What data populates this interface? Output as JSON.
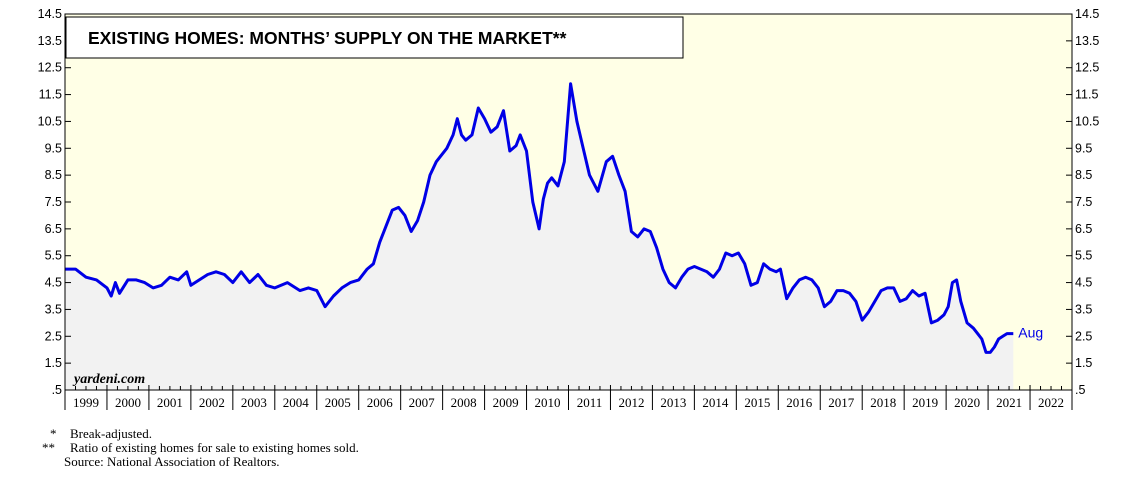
{
  "chart_data": {
    "type": "area",
    "title": "EXISTING HOMES: MONTHS’ SUPPLY ON THE MARKET**",
    "watermark": "yardeni.com",
    "end_label": "Aug",
    "xlabel": "",
    "ylabel": "",
    "ylim": [
      0.5,
      14.5
    ],
    "y_ticks": [
      ".5",
      "1.5",
      "2.5",
      "3.5",
      "4.5",
      "5.5",
      "6.5",
      "7.5",
      "8.5",
      "9.5",
      "10.5",
      "11.5",
      "12.5",
      "13.5",
      "14.5"
    ],
    "x_range": [
      1999.0,
      2023.0
    ],
    "x_tick_labels": [
      "1999",
      "2000",
      "2001",
      "2002",
      "2003",
      "2004",
      "2005",
      "2006",
      "2007",
      "2008",
      "2009",
      "2010",
      "2011",
      "2012",
      "2013",
      "2014",
      "2015",
      "2016",
      "2017",
      "2018",
      "2019",
      "2020",
      "2021",
      "2022"
    ],
    "grid": false,
    "colors": {
      "line": "#0000e6",
      "area": "#f2f2f2",
      "background": "#ffffe6"
    },
    "series": [
      {
        "x": [
          1999.0,
          1999.25,
          1999.5,
          1999.75,
          2000.0,
          2000.1,
          2000.2,
          2000.3,
          2000.5,
          2000.7,
          2000.9,
          2001.1,
          2001.3,
          2001.5,
          2001.7,
          2001.9,
          2002.0,
          2002.2,
          2002.4,
          2002.6,
          2002.8,
          2003.0,
          2003.2,
          2003.4,
          2003.6,
          2003.8,
          2004.0,
          2004.3,
          2004.6,
          2004.8,
          2005.0,
          2005.2,
          2005.4,
          2005.6,
          2005.8,
          2006.0,
          2006.2,
          2006.35,
          2006.5,
          2006.65,
          2006.8,
          2006.95,
          2007.1,
          2007.25,
          2007.4,
          2007.55,
          2007.7,
          2007.85,
          2007.95,
          2008.1,
          2008.25,
          2008.35,
          2008.45,
          2008.55,
          2008.7,
          2008.85,
          2009.0,
          2009.15,
          2009.3,
          2009.45,
          2009.6,
          2009.75,
          2009.85,
          2010.0,
          2010.15,
          2010.3,
          2010.4,
          2010.5,
          2010.6,
          2010.75,
          2010.9,
          2011.05,
          2011.2,
          2011.35,
          2011.5,
          2011.7,
          2011.9,
          2012.05,
          2012.2,
          2012.35,
          2012.5,
          2012.65,
          2012.8,
          2012.95,
          2013.1,
          2013.25,
          2013.4,
          2013.55,
          2013.7,
          2013.85,
          2014.0,
          2014.15,
          2014.3,
          2014.45,
          2014.6,
          2014.75,
          2014.9,
          2015.05,
          2015.2,
          2015.35,
          2015.5,
          2015.65,
          2015.8,
          2015.95,
          2016.05,
          2016.2,
          2016.35,
          2016.5,
          2016.65,
          2016.8,
          2016.95,
          2017.1,
          2017.25,
          2017.4,
          2017.55,
          2017.7,
          2017.85,
          2018.0,
          2018.15,
          2018.3,
          2018.45,
          2018.6,
          2018.75,
          2018.9,
          2019.05,
          2019.2,
          2019.35,
          2019.5,
          2019.65,
          2019.8,
          2019.95,
          2020.05,
          2020.15,
          2020.25,
          2020.35,
          2020.5,
          2020.65,
          2020.75,
          2020.85,
          2020.95,
          2021.05,
          2021.15,
          2021.25,
          2021.35,
          2021.45,
          2021.55,
          2021.6
        ],
        "y": [
          5.0,
          5.0,
          4.7,
          4.6,
          4.3,
          4.0,
          4.5,
          4.1,
          4.6,
          4.6,
          4.5,
          4.3,
          4.4,
          4.7,
          4.6,
          4.9,
          4.4,
          4.6,
          4.8,
          4.9,
          4.8,
          4.5,
          4.9,
          4.5,
          4.8,
          4.4,
          4.3,
          4.5,
          4.2,
          4.3,
          4.2,
          3.6,
          4.0,
          4.3,
          4.5,
          4.6,
          5.0,
          5.2,
          6.0,
          6.6,
          7.2,
          7.3,
          7.0,
          6.4,
          6.8,
          7.5,
          8.5,
          9.0,
          9.2,
          9.5,
          10.0,
          10.6,
          10.0,
          9.8,
          10.0,
          11.0,
          10.6,
          10.1,
          10.3,
          10.9,
          9.4,
          9.6,
          10.0,
          9.4,
          7.5,
          6.5,
          7.6,
          8.2,
          8.4,
          8.1,
          9.0,
          11.9,
          10.5,
          9.5,
          8.5,
          7.9,
          9.0,
          9.2,
          8.5,
          7.9,
          6.4,
          6.2,
          6.5,
          6.4,
          5.8,
          5.0,
          4.5,
          4.3,
          4.7,
          5.0,
          5.1,
          5.0,
          4.9,
          4.7,
          5.0,
          5.6,
          5.5,
          5.6,
          5.2,
          4.4,
          4.5,
          5.2,
          5.0,
          4.9,
          5.0,
          3.9,
          4.3,
          4.6,
          4.7,
          4.6,
          4.3,
          3.6,
          3.8,
          4.2,
          4.2,
          4.1,
          3.8,
          3.1,
          3.4,
          3.8,
          4.2,
          4.3,
          4.3,
          3.8,
          3.9,
          4.2,
          4.0,
          4.1,
          3.0,
          3.1,
          3.3,
          3.6,
          4.5,
          4.6,
          3.8,
          3.0,
          2.8,
          2.6,
          2.4,
          1.9,
          1.9,
          2.1,
          2.4,
          2.5,
          2.6,
          2.6,
          2.6
        ]
      }
    ]
  },
  "footnotes": [
    {
      "mark": "*",
      "text": "Break-adjusted."
    },
    {
      "mark": "**",
      "text": "Ratio of existing homes for sale to existing homes sold."
    }
  ],
  "source": "Source: National Association of Realtors."
}
